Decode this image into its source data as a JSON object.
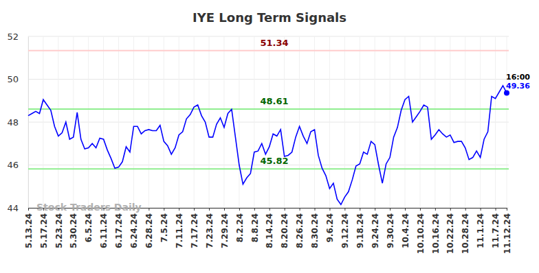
{
  "chart_data": {
    "type": "line",
    "title": "IYE Long Term Signals",
    "watermark": "Stock Traders Daily",
    "categories": [
      "5.13.24",
      null,
      null,
      null,
      "5.17.24",
      null,
      null,
      null,
      "5.23.24",
      null,
      null,
      null,
      "5.30.24",
      null,
      null,
      null,
      "6.5.24",
      null,
      null,
      null,
      "6.11.24",
      null,
      null,
      null,
      "6.17.24",
      null,
      null,
      null,
      "6.24.24",
      null,
      null,
      null,
      "6.28.24",
      null,
      null,
      null,
      "7.5.24",
      null,
      null,
      null,
      "7.11.24",
      null,
      null,
      null,
      "7.17.24",
      null,
      null,
      null,
      "7.23.24",
      null,
      null,
      null,
      "7.29.24",
      null,
      null,
      null,
      "8.2.24",
      null,
      null,
      null,
      "8.8.24",
      null,
      null,
      null,
      "8.14.24",
      null,
      null,
      null,
      "8.20.24",
      null,
      null,
      null,
      "8.26.24",
      null,
      null,
      null,
      "8.30.24",
      null,
      null,
      null,
      "9.6.24",
      null,
      null,
      null,
      "9.12.24",
      null,
      null,
      null,
      "9.18.24",
      null,
      null,
      null,
      "9.24.24",
      null,
      null,
      null,
      "9.30.24",
      null,
      null,
      null,
      "10.4.24",
      null,
      null,
      null,
      "10.10.24",
      null,
      null,
      null,
      "10.16.24",
      null,
      null,
      null,
      "10.22.24",
      null,
      null,
      null,
      "10.28.24",
      null,
      null,
      null,
      "11.1.24",
      null,
      null,
      null,
      "11.7.24",
      null,
      null,
      "11.12.24"
    ],
    "series": [
      {
        "color": "#0000ff",
        "values": [
          48.3,
          48.4,
          48.5,
          48.4,
          49.05,
          48.8,
          48.55,
          47.8,
          47.35,
          47.5,
          48.0,
          47.2,
          47.3,
          48.45,
          47.2,
          46.75,
          46.8,
          47.0,
          46.8,
          47.25,
          47.2,
          46.7,
          46.3,
          45.85,
          45.9,
          46.15,
          46.85,
          46.6,
          47.8,
          47.8,
          47.45,
          47.6,
          47.65,
          47.6,
          47.6,
          47.85,
          47.1,
          46.9,
          46.5,
          46.8,
          47.4,
          47.55,
          48.15,
          48.35,
          48.7,
          48.8,
          48.3,
          48.0,
          47.3,
          47.3,
          47.9,
          48.2,
          47.75,
          48.4,
          48.6,
          47.3,
          46.0,
          45.1,
          45.4,
          45.6,
          46.6,
          46.65,
          47.0,
          46.5,
          46.85,
          47.45,
          47.35,
          47.65,
          46.4,
          46.45,
          46.6,
          47.3,
          47.8,
          47.35,
          47.0,
          47.55,
          47.65,
          46.45,
          45.85,
          45.5,
          44.9,
          45.15,
          44.4,
          44.15,
          44.5,
          44.75,
          45.3,
          45.95,
          46.05,
          46.6,
          46.5,
          47.1,
          46.95,
          46.0,
          45.15,
          46.05,
          46.35,
          47.3,
          47.75,
          48.55,
          49.05,
          49.2,
          48.0,
          48.25,
          48.5,
          48.8,
          48.7,
          47.2,
          47.4,
          47.65,
          47.45,
          47.3,
          47.4,
          47.05,
          47.1,
          47.1,
          46.8,
          46.25,
          46.35,
          46.65,
          46.35,
          47.2,
          47.55,
          49.2,
          49.1,
          49.4,
          49.7,
          49.36
        ]
      }
    ],
    "reference_lines": [
      {
        "value": 51.34,
        "label": "51.34",
        "color": "#ffcccc"
      },
      {
        "value": 48.61,
        "label": "48.61",
        "color": "#90ee90"
      },
      {
        "value": 45.82,
        "label": "45.82",
        "color": "#90ee90"
      }
    ],
    "last_time": "16:00",
    "ylim": [
      44,
      52
    ],
    "yticks": [
      44,
      46,
      48,
      50,
      52
    ],
    "grid": true
  }
}
